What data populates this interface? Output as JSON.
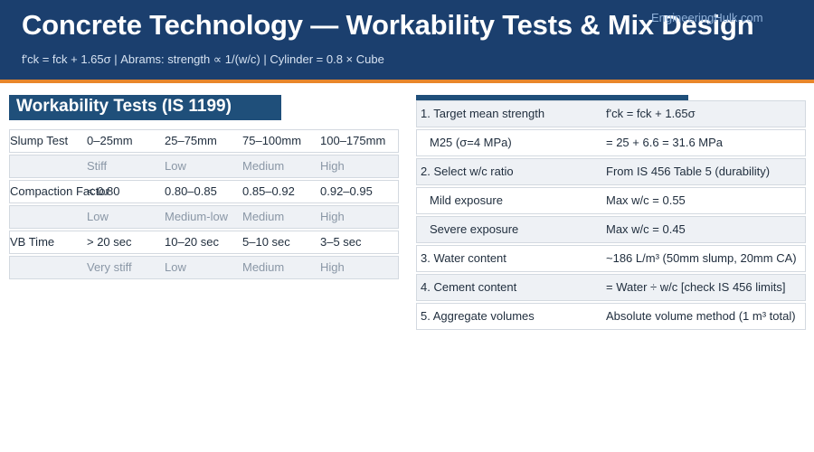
{
  "header": {
    "title": "Concrete Technology — Workability Tests & Mix Design",
    "watermark": "EngineeringHulk.com",
    "subtitle": "f'ck = fck + 1.65σ  |  Abrams: strength ∝ 1/(w/c)  |  Cylinder = 0.8 × Cube"
  },
  "workability": {
    "title": "Workability Tests (IS 1199)",
    "rows": [
      {
        "cells": [
          "Slump Test",
          "0–25mm",
          "25–75mm",
          "75–100mm",
          "100–175mm"
        ]
      },
      {
        "cells": [
          "",
          "Stiff",
          "Low",
          "Medium",
          "High"
        ]
      },
      {
        "cells": [
          "Compaction Factor",
          "< 0.80",
          "0.80–0.85",
          "0.85–0.92",
          "0.92–0.95"
        ]
      },
      {
        "cells": [
          "",
          "Low",
          "Medium-low",
          "Medium",
          "High"
        ]
      },
      {
        "cells": [
          "VB Time",
          "> 20 sec",
          "10–20 sec",
          "5–10 sec",
          "3–5 sec"
        ]
      },
      {
        "cells": [
          "",
          "Very stiff",
          "Low",
          "Medium",
          "High"
        ]
      }
    ]
  },
  "mix_design": {
    "rows": [
      {
        "step": "1. Target mean strength",
        "value": "f'ck = fck + 1.65σ"
      },
      {
        "step": "M25 (σ=4 MPa)",
        "value": "= 25 + 6.6 = 31.6 MPa"
      },
      {
        "step": "2. Select w/c ratio",
        "value": "From IS 456 Table 5 (durability)"
      },
      {
        "step": "Mild exposure",
        "value": "Max w/c = 0.55"
      },
      {
        "step": "Severe exposure",
        "value": "Max w/c = 0.45"
      },
      {
        "step": "3. Water content",
        "value": "~186 L/m³ (50mm slump, 20mm CA)"
      },
      {
        "step": "4. Cement content",
        "value": "= Water ÷ w/c  [check IS 456 limits]"
      },
      {
        "step": "5. Aggregate volumes",
        "value": "Absolute volume method (1 m³ total)"
      }
    ]
  }
}
